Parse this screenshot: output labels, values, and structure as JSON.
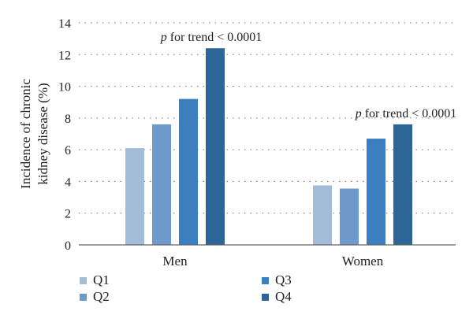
{
  "chart_data": {
    "type": "bar",
    "categories": [
      "Men",
      "Women"
    ],
    "series": [
      {
        "name": "Q1",
        "values": [
          6.1,
          3.75
        ],
        "color": "#a3bcd8"
      },
      {
        "name": "Q2",
        "values": [
          7.6,
          3.55
        ],
        "color": "#6d9acb"
      },
      {
        "name": "Q3",
        "values": [
          9.2,
          6.7
        ],
        "color": "#3c7fc1"
      },
      {
        "name": "Q4",
        "values": [
          12.4,
          7.6
        ],
        "color": "#2c6699"
      }
    ],
    "ylabel": [
      "Incidence of chronic",
      "kidney disease (%)"
    ],
    "ylim": [
      0,
      14
    ],
    "yticks": [
      0,
      2,
      4,
      6,
      8,
      10,
      12,
      14
    ],
    "grid": "horizontal-dotted",
    "legend_placement": "bottom-left",
    "annotations": [
      {
        "category": "Men",
        "prefix": "p",
        "text": " for trend < 0.0001"
      },
      {
        "category": "Women",
        "prefix": "p",
        "text": " for trend < 0.0001"
      }
    ]
  }
}
